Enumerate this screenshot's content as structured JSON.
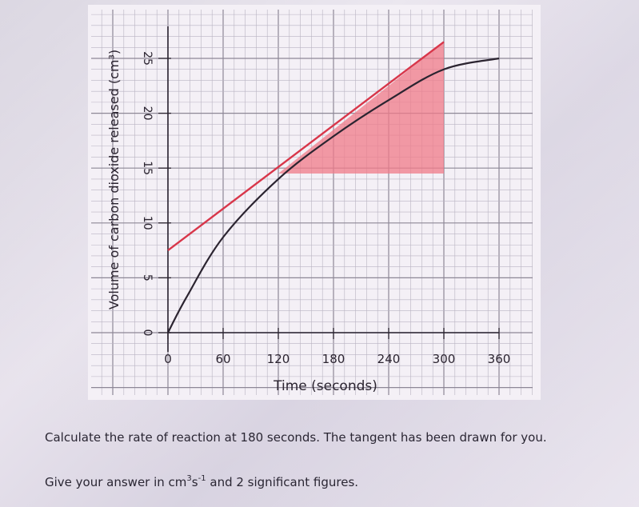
{
  "chart_data": {
    "type": "line",
    "title": "",
    "xlabel": "Time (seconds)",
    "ylabel": "Volume of carbon dioxide released (cm³)",
    "x_ticks": [
      "0",
      "60",
      "120",
      "180",
      "240",
      "300",
      "360"
    ],
    "y_ticks": [
      "0",
      "5",
      "10",
      "15",
      "20",
      "25"
    ],
    "xlim": [
      0,
      360
    ],
    "ylim": [
      0,
      25
    ],
    "grid": true,
    "colors": {
      "curve": "#2b2430",
      "tangent": "#d8364a",
      "triangle": "#f07b88"
    },
    "series": [
      {
        "x": [
          0,
          20,
          60,
          120,
          180,
          240,
          300,
          360
        ],
        "y": [
          0,
          3.2,
          8.7,
          14.0,
          17.9,
          21.2,
          24.0,
          25.0
        ]
      }
    ],
    "tangent": {
      "x": [
        0,
        300
      ],
      "y": [
        7.5,
        26.5
      ]
    },
    "triangle": {
      "x": [
        120,
        300
      ],
      "y": [
        14.5,
        26.5
      ]
    }
  },
  "question": {
    "line1": "Calculate the rate of reaction at 180 seconds. The tangent has been drawn for you.",
    "line2_pre": "Give your answer in cm",
    "sup1": "3",
    "mid": "s",
    "sup2": "-1",
    "line2_post": " and 2 significant figures."
  }
}
